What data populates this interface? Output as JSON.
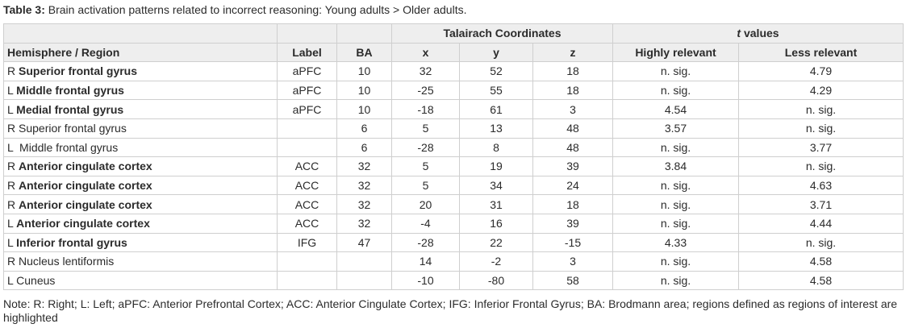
{
  "caption": {
    "label": "Table 3:",
    "text": " Brain activation patterns related to incorrect reasoning: Young adults > Older adults."
  },
  "header": {
    "talairach": "Talairach Coordinates",
    "tvalues_italic": "t",
    "tvalues_rest": " values",
    "columns": [
      "Hemisphere / Region",
      "Label",
      "BA",
      "x",
      "y",
      "z",
      "Highly relevant",
      "Less relevant"
    ]
  },
  "rows": [
    {
      "hem": "R ",
      "region": "Superior frontal gyrus",
      "highlight": true,
      "label": "aPFC",
      "ba": "10",
      "x": "32",
      "y": "52",
      "z": "18",
      "high": "n. sig.",
      "less": "4.79"
    },
    {
      "hem": "L ",
      "region": "Middle frontal gyrus",
      "highlight": true,
      "label": "aPFC",
      "ba": "10",
      "x": "-25",
      "y": "55",
      "z": "18",
      "high": "n. sig.",
      "less": "4.29"
    },
    {
      "hem": "L ",
      "region": "Medial frontal gyrus",
      "highlight": true,
      "label": "aPFC",
      "ba": "10",
      "x": "-18",
      "y": "61",
      "z": "3",
      "high": "4.54",
      "less": "n. sig."
    },
    {
      "hem": "R ",
      "region": "Superior frontal gyrus",
      "highlight": false,
      "label": "",
      "ba": "6",
      "x": "5",
      "y": "13",
      "z": "48",
      "high": "3.57",
      "less": "n. sig."
    },
    {
      "hem": "L  ",
      "region": "Middle frontal gyrus",
      "highlight": false,
      "label": "",
      "ba": "6",
      "x": "-28",
      "y": "8",
      "z": "48",
      "high": "n. sig.",
      "less": "3.77"
    },
    {
      "hem": "R ",
      "region": "Anterior cingulate cortex",
      "highlight": true,
      "label": "ACC",
      "ba": "32",
      "x": "5",
      "y": "19",
      "z": "39",
      "high": "3.84",
      "less": "n. sig."
    },
    {
      "hem": "R ",
      "region": "Anterior cingulate cortex",
      "highlight": true,
      "label": "ACC",
      "ba": "32",
      "x": "5",
      "y": "34",
      "z": "24",
      "high": "n. sig.",
      "less": "4.63"
    },
    {
      "hem": "R ",
      "region": "Anterior cingulate cortex",
      "highlight": true,
      "label": "ACC",
      "ba": "32",
      "x": "20",
      "y": "31",
      "z": "18",
      "high": "n. sig.",
      "less": "3.71"
    },
    {
      "hem": "L ",
      "region": "Anterior cingulate cortex",
      "highlight": true,
      "label": "ACC",
      "ba": "32",
      "x": "-4",
      "y": "16",
      "z": "39",
      "high": "n. sig.",
      "less": "4.44"
    },
    {
      "hem": "L ",
      "region": "Inferior frontal gyrus",
      "highlight": true,
      "label": "IFG",
      "ba": "47",
      "x": "-28",
      "y": "22",
      "z": "-15",
      "high": "4.33",
      "less": "n. sig."
    },
    {
      "hem": "R ",
      "region": "Nucleus lentiformis",
      "highlight": false,
      "label": "",
      "ba": "",
      "x": "14",
      "y": "-2",
      "z": "3",
      "high": "n. sig.",
      "less": "4.58"
    },
    {
      "hem": "L ",
      "region": "Cuneus",
      "highlight": false,
      "label": "",
      "ba": "",
      "x": "-10",
      "y": "-80",
      "z": "58",
      "high": "n. sig.",
      "less": "4.58"
    }
  ],
  "note": "Note: R: Right; L: Left; aPFC: Anterior Prefrontal Cortex; ACC: Anterior Cingulate Cortex;  IFG: Inferior Frontal Gyrus; BA: Brodmann area; regions defined as regions of interest are highlighted"
}
